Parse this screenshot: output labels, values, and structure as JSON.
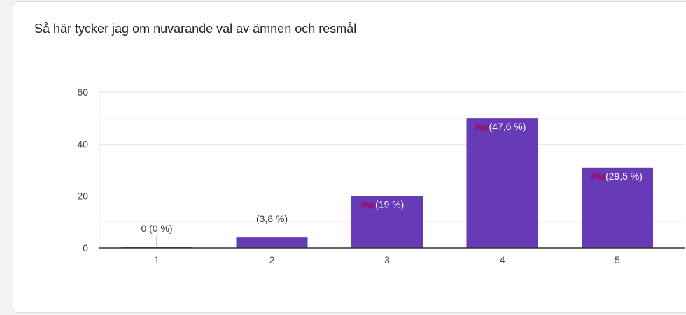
{
  "question": {
    "title": "Så här tycker jag om nuvarande val av ämnen och resmål"
  },
  "colors": {
    "bar": "#673ab7",
    "grid": "#e6e6e6",
    "axis": "#333333",
    "scribble": "#8a1a7f"
  },
  "chart_data": {
    "type": "bar",
    "categories": [
      "1",
      "2",
      "3",
      "4",
      "5"
    ],
    "values": [
      0,
      4,
      20,
      50,
      31
    ],
    "data_labels": [
      "0 (0 %)",
      "(3,8 %)",
      "(19 %)",
      "(47,6 %)",
      "(29,5 %)"
    ],
    "y_ticks": [
      "0",
      "20",
      "40",
      "60"
    ],
    "ylim": [
      0,
      60
    ],
    "grid": true,
    "legend": "none"
  }
}
